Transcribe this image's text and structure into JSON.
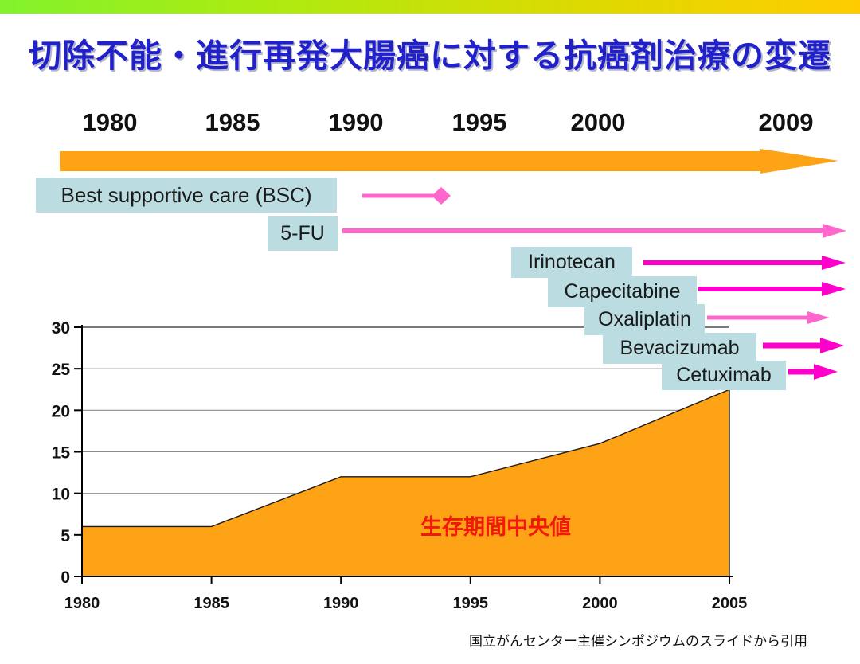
{
  "slide": {
    "title": "切除不能・進行再発大腸癌に対する抗癌剤治療の変遷",
    "source_caption": "国立がんセンター主催シンポジウムのスライドから引用"
  },
  "timeline": {
    "years": [
      "1980",
      "1985",
      "1990",
      "1995",
      "2000",
      "2009"
    ],
    "arrow_color": "#FFA316"
  },
  "treatments": [
    {
      "name": "Best supportive care (BSC)",
      "arrow_style": "line-ending-in-diamond",
      "arrow_color": "#FF66CC"
    },
    {
      "name": "5-FU",
      "arrow_style": "arrow",
      "arrow_color": "#FF66CC"
    },
    {
      "name": "Irinotecan",
      "arrow_style": "arrow",
      "arrow_color": "#FF00CC"
    },
    {
      "name": "Capecitabine",
      "arrow_style": "arrow",
      "arrow_color": "#FF00CC"
    },
    {
      "name": "Oxaliplatin",
      "arrow_style": "arrow",
      "arrow_color": "#FF66CC"
    },
    {
      "name": "Bevacizumab",
      "arrow_style": "arrow",
      "arrow_color": "#FF00CC"
    },
    {
      "name": "Cetuximab",
      "arrow_style": "arrow",
      "arrow_color": "#FF00CC"
    }
  ],
  "colors": {
    "title": "#2121CC",
    "label_bg": "#BBDDE2",
    "gradient_left": "#82F22C",
    "gradient_right": "#FFCC00",
    "annotation_red": "#F2190A"
  },
  "chart_data": {
    "type": "area",
    "x": [
      1980,
      1985,
      1990,
      1995,
      2000,
      2005
    ],
    "values": [
      6,
      6,
      12,
      12,
      16,
      22.5
    ],
    "annotation": "生存期間中央値",
    "xticks": [
      "1980",
      "1985",
      "1990",
      "1995",
      "2000",
      "2005"
    ],
    "yticks": [
      0,
      5,
      10,
      15,
      20,
      25,
      30
    ],
    "xlim": [
      1980,
      2005
    ],
    "ylim": [
      0,
      30
    ],
    "fill_color": "#FFA316",
    "line_color": "#1a1a1a",
    "grid": true,
    "legend": false,
    "xlabel": "",
    "ylabel": ""
  }
}
